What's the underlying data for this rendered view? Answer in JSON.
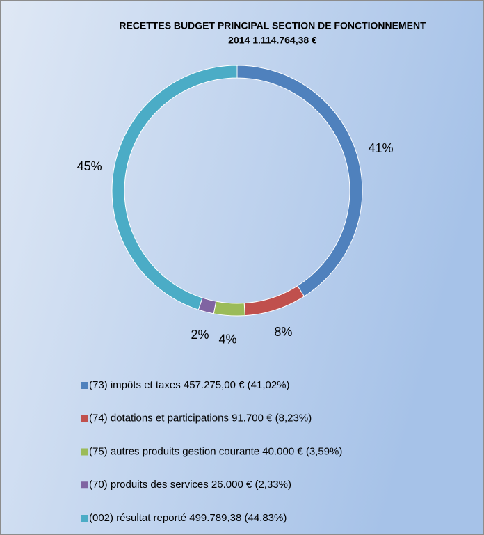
{
  "chart_data": {
    "type": "donut",
    "title": [
      "RECETTES BUDGET PRINCIPAL SECTION DE FONCTIONNEMENT",
      "2014  1.114.764,38  €"
    ],
    "categories": [
      "(73) impôts et taxes 457.275,00 € (41,02%)",
      "(74) dotations et participations 91.700 € (8,23%)",
      "(75) autres produits gestion courante 40.000 € (3,59%)",
      "(70) produits des services 26.000 € (2,33%)",
      "(002) résultat reporté 499.789,38 (44,83%)"
    ],
    "values": [
      41,
      8,
      4,
      2,
      45
    ],
    "value_labels": [
      "41%",
      "8%",
      "4%",
      "2%",
      "45%"
    ],
    "colors": [
      "#4f81bd",
      "#c0504d",
      "#9bbb59",
      "#8064a2",
      "#4bacc6"
    ],
    "legend": "bottom"
  }
}
